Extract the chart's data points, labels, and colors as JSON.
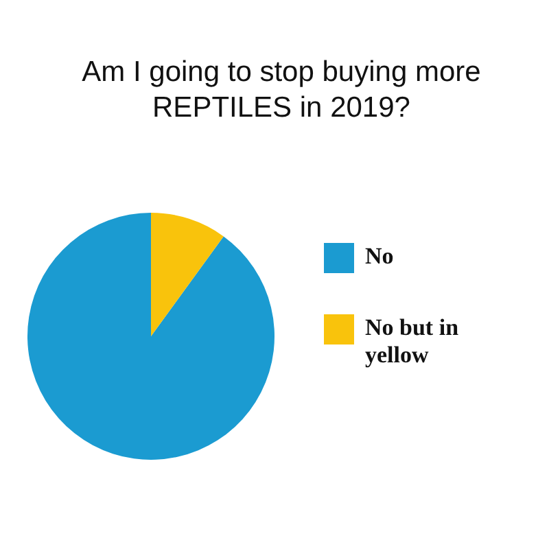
{
  "chart_data": {
    "type": "pie",
    "title": "Am I going to stop buying more REPTILES in 2019?",
    "categories": [
      "No",
      "No but in yellow"
    ],
    "values": [
      90,
      10
    ],
    "colors": [
      "#1b9bd1",
      "#f9c30c"
    ],
    "legend": "right"
  }
}
